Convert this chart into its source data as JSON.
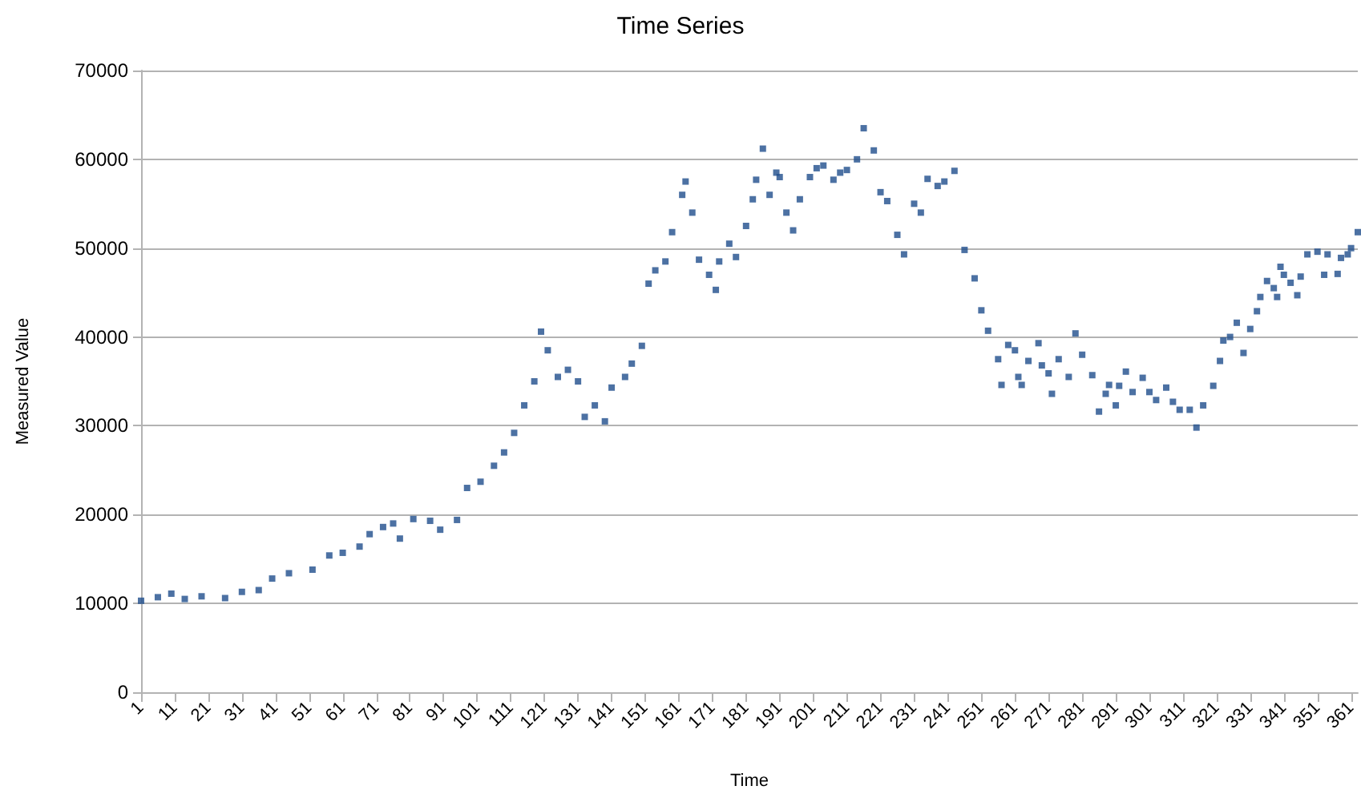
{
  "chart_data": {
    "type": "scatter",
    "title": "Time Series",
    "xlabel": "Time",
    "ylabel": "Measured Value",
    "marker": "square",
    "grid": "y",
    "xlim": [
      1,
      363
    ],
    "xticks": [
      1,
      11,
      21,
      31,
      41,
      51,
      61,
      71,
      81,
      91,
      101,
      111,
      121,
      131,
      141,
      151,
      161,
      171,
      181,
      191,
      201,
      211,
      221,
      231,
      241,
      251,
      261,
      271,
      281,
      291,
      301,
      311,
      321,
      331,
      341,
      351,
      361
    ],
    "ylim": [
      0,
      70000
    ],
    "yticks": [
      0,
      10000,
      20000,
      30000,
      40000,
      50000,
      60000,
      70000
    ],
    "series": [
      {
        "color": "#1f4e8c",
        "x": [
          1,
          6,
          10,
          14,
          19,
          26,
          31,
          36,
          40,
          45,
          52,
          57,
          61,
          66,
          69,
          73,
          76,
          78,
          82,
          87,
          90,
          95,
          98,
          102,
          106,
          109,
          112,
          115,
          118,
          120,
          122,
          125,
          128,
          131,
          133,
          136,
          139,
          141,
          145,
          147,
          150,
          152,
          154,
          157,
          159,
          162,
          163,
          165,
          167,
          170,
          172,
          173,
          176,
          178,
          181,
          183,
          184,
          186,
          188,
          190,
          191,
          193,
          195,
          197,
          200,
          202,
          204,
          207,
          209,
          211,
          214,
          216,
          219,
          221,
          223,
          226,
          228,
          231,
          233,
          235,
          238,
          240,
          243,
          246,
          249,
          251,
          253,
          256,
          257,
          259,
          261,
          262,
          263,
          265,
          268,
          269,
          271,
          272,
          274,
          277,
          279,
          281,
          284,
          286,
          288,
          289,
          291,
          292,
          294,
          296,
          299,
          301,
          303,
          306,
          308,
          310,
          313,
          315,
          317,
          320,
          322,
          323,
          325,
          327,
          329,
          331,
          333,
          334,
          336,
          338,
          339,
          340,
          341,
          343,
          345,
          346,
          348,
          351,
          353,
          354,
          357,
          358,
          360,
          361,
          363
        ],
        "values": [
          10300,
          10700,
          11100,
          10500,
          10800,
          10600,
          11300,
          11500,
          12800,
          13400,
          13800,
          15400,
          15700,
          16400,
          17800,
          18600,
          19000,
          17300,
          19500,
          19300,
          18300,
          19400,
          23000,
          23700,
          25500,
          27000,
          29200,
          32300,
          35000,
          40600,
          38500,
          35500,
          36300,
          35000,
          31000,
          32300,
          30500,
          34300,
          35500,
          37000,
          39000,
          46000,
          47500,
          48500,
          51800,
          56000,
          57500,
          54000,
          48700,
          47000,
          45300,
          48500,
          50500,
          49000,
          52500,
          55500,
          57700,
          61200,
          56000,
          58500,
          58000,
          54000,
          52000,
          55500,
          58000,
          59000,
          59300,
          57700,
          58500,
          58800,
          60000,
          63500,
          61000,
          56300,
          55300,
          51500,
          49300,
          55000,
          54000,
          57800,
          57000,
          57500,
          58700,
          49800,
          46600,
          43000,
          40700,
          37500,
          34600,
          39100,
          38500,
          35500,
          34600,
          37300,
          39300,
          36800,
          35900,
          33600,
          37500,
          35500,
          40400,
          38000,
          35700,
          31600,
          33600,
          34600,
          32300,
          34500,
          36100,
          33800,
          35400,
          33800,
          32900,
          34300,
          32700,
          31800,
          31800,
          29800,
          32300,
          34500,
          37300,
          39600,
          40000,
          41600,
          38200,
          40900,
          42900,
          44500,
          46300,
          45500,
          44500,
          47900,
          47000,
          46100,
          44700,
          46800,
          49300,
          49600,
          47000,
          49300,
          47100,
          48900,
          49300,
          50000,
          51800
        ]
      }
    ]
  }
}
